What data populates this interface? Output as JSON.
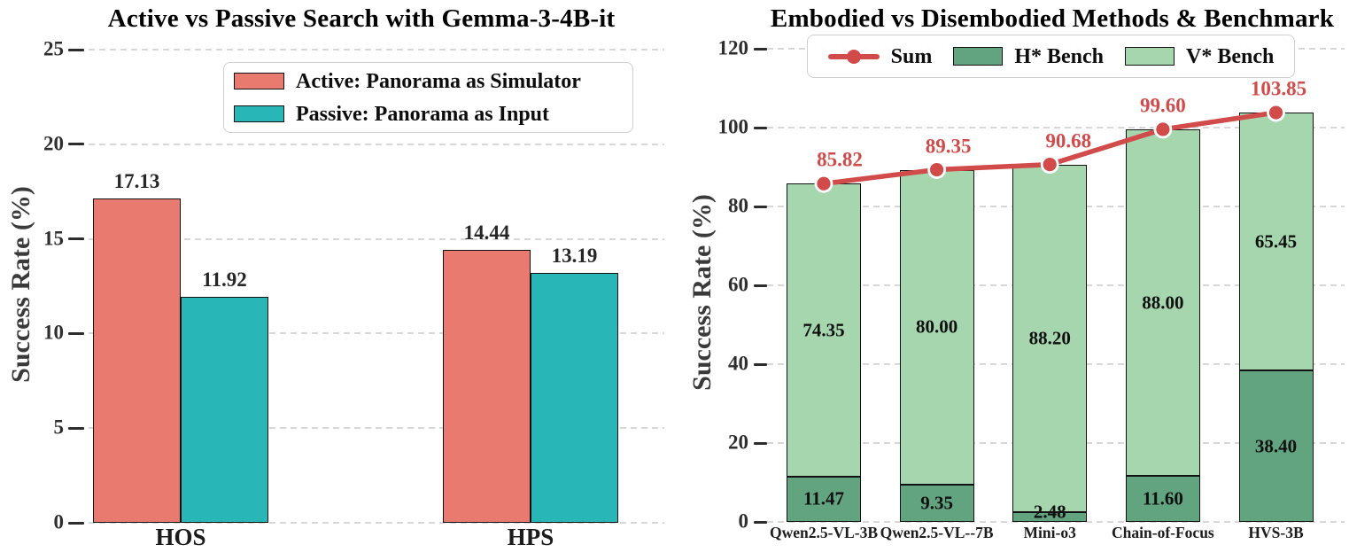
{
  "chart_data": [
    {
      "type": "bar",
      "title": "Active vs Passive Search with Gemma-3-4B-it",
      "ylabel": "Success Rate (%)",
      "xlabel": "",
      "categories": [
        "HOS",
        "HPS"
      ],
      "series": [
        {
          "name": "Active: Panorama as Simulator",
          "values": [
            17.13,
            14.44
          ],
          "color": "#E87A70"
        },
        {
          "name": "Passive: Panorama as Input",
          "values": [
            11.92,
            13.19
          ],
          "color": "#28B6B6"
        }
      ],
      "ylim": [
        0,
        25
      ],
      "yticks": [
        0,
        5,
        10,
        15,
        20,
        25
      ],
      "grid": true,
      "grid_style": "dashed",
      "legend_position": "upper center",
      "value_labels": "above bars, 2 decimals"
    },
    {
      "type": "stacked-bar+line",
      "title": "Embodied vs Disembodied Methods & Benchmark",
      "ylabel": "Success Rate (%)",
      "xlabel": "",
      "categories": [
        "Qwen2.5-VL-3B",
        "Qwen2.5-VL--7B",
        "Mini-o3",
        "Chain-of-Focus",
        "HVS-3B"
      ],
      "series": [
        {
          "name": "Sum",
          "kind": "line",
          "values": [
            85.82,
            89.35,
            90.68,
            99.6,
            103.85
          ],
          "color": "#D14B4B",
          "marker": "circle-white-edge"
        },
        {
          "name": "H* Bench",
          "kind": "bar-stack",
          "values": [
            11.47,
            9.35,
            2.48,
            11.6,
            38.4
          ],
          "color": "#61A47F"
        },
        {
          "name": "V* Bench",
          "kind": "bar-stack",
          "values": [
            74.35,
            80.0,
            88.2,
            88.0,
            65.45
          ],
          "color": "#A5D6AE"
        }
      ],
      "ylim": [
        0,
        120
      ],
      "yticks": [
        0,
        20,
        40,
        60,
        80,
        100,
        120
      ],
      "grid": true,
      "grid_style": "dashed",
      "legend_position": "upper center",
      "value_labels": "inside segments and above line markers, 2 decimals"
    }
  ]
}
